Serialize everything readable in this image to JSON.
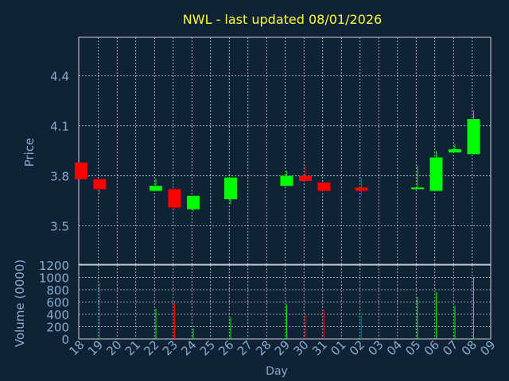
{
  "title": "NWL - last updated 08/01/2026",
  "colors": {
    "background": "#0f2236",
    "title": "#ffff33",
    "axis_text": "#8aaccc",
    "grid": "#c8d0d8",
    "up": "#00ff00",
    "down": "#ff0000"
  },
  "chart_data": [
    {
      "type": "candlestick",
      "ylabel": "Price",
      "ylim": [
        3.27,
        4.63
      ],
      "yticks": [
        3.5,
        3.8,
        4.1,
        4.4
      ],
      "grid": true,
      "candles": [
        {
          "x": 0,
          "open": 3.88,
          "close": 3.78,
          "high": 3.88,
          "low": 3.78
        },
        {
          "x": 1,
          "open": 3.78,
          "close": 3.72,
          "high": 3.78,
          "low": 3.69
        },
        {
          "x": 4,
          "open": 3.71,
          "close": 3.74,
          "high": 3.78,
          "low": 3.71
        },
        {
          "x": 5,
          "open": 3.72,
          "close": 3.61,
          "high": 3.72,
          "low": 3.6
        },
        {
          "x": 6,
          "open": 3.6,
          "close": 3.68,
          "high": 3.68,
          "low": 3.59
        },
        {
          "x": 8,
          "open": 3.66,
          "close": 3.79,
          "high": 3.79,
          "low": 3.63
        },
        {
          "x": 11,
          "open": 3.74,
          "close": 3.8,
          "high": 3.83,
          "low": 3.74
        },
        {
          "x": 12,
          "open": 3.8,
          "close": 3.77,
          "high": 3.86,
          "low": 3.77
        },
        {
          "x": 13,
          "open": 3.76,
          "close": 3.71,
          "high": 3.76,
          "low": 3.71
        },
        {
          "x": 15,
          "open": 3.73,
          "close": 3.71,
          "high": 3.79,
          "low": 3.68
        },
        {
          "x": 18,
          "open": 3.72,
          "close": 3.73,
          "high": 3.86,
          "low": 3.72
        },
        {
          "x": 19,
          "open": 3.71,
          "close": 3.91,
          "high": 3.95,
          "low": 3.71
        },
        {
          "x": 20,
          "open": 3.94,
          "close": 3.96,
          "high": 3.99,
          "low": 3.94
        },
        {
          "x": 21,
          "open": 3.93,
          "close": 4.14,
          "high": 4.19,
          "low": 3.93
        }
      ]
    },
    {
      "type": "bar",
      "ylabel": "Volume (0000)",
      "xlabel": "Day",
      "ylim": [
        0,
        1200
      ],
      "yticks": [
        0,
        200,
        400,
        600,
        800,
        1000,
        1200
      ],
      "categories": [
        "18",
        "19",
        "20",
        "21",
        "22",
        "23",
        "24",
        "25",
        "26",
        "27",
        "28",
        "29",
        "30",
        "31",
        "01",
        "02",
        "03",
        "04",
        "05",
        "06",
        "07",
        "08",
        "09"
      ],
      "bars": [
        {
          "x": 1,
          "value": 900,
          "dir": "down"
        },
        {
          "x": 4,
          "value": 490,
          "dir": "up"
        },
        {
          "x": 5,
          "value": 580,
          "dir": "down"
        },
        {
          "x": 6,
          "value": 170,
          "dir": "up"
        },
        {
          "x": 8,
          "value": 350,
          "dir": "up"
        },
        {
          "x": 11,
          "value": 560,
          "dir": "up"
        },
        {
          "x": 12,
          "value": 400,
          "dir": "down"
        },
        {
          "x": 13,
          "value": 470,
          "dir": "down"
        },
        {
          "x": 15,
          "value": 380,
          "dir": "down"
        },
        {
          "x": 18,
          "value": 680,
          "dir": "up"
        },
        {
          "x": 19,
          "value": 760,
          "dir": "up"
        },
        {
          "x": 20,
          "value": 540,
          "dir": "up"
        },
        {
          "x": 21,
          "value": 1000,
          "dir": "up"
        }
      ]
    }
  ]
}
